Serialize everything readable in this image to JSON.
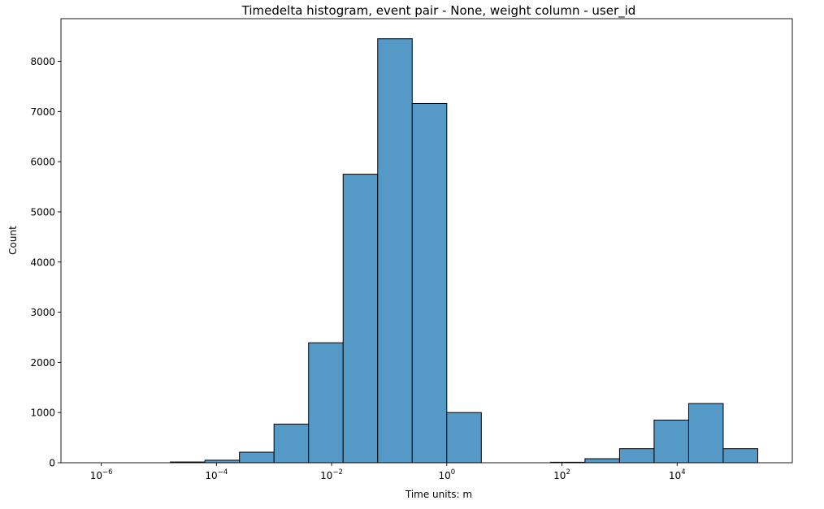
{
  "chart_data": {
    "type": "bar",
    "title": "Timedelta histogram, event pair - None, weight column - user_id",
    "xlabel": "Time units: m",
    "ylabel": "Count",
    "xscale": "log",
    "xlim_log10": [
      -6.7,
      6.0
    ],
    "ylim": [
      0,
      8850
    ],
    "grid": false,
    "legend": "none",
    "bar_color": "#5599c7",
    "edge_color": "#000000",
    "yticks": [
      0,
      1000,
      2000,
      3000,
      4000,
      5000,
      6000,
      7000,
      8000
    ],
    "xticks": [
      {
        "base": "10",
        "exp": "−6",
        "log": -6
      },
      {
        "base": "10",
        "exp": "−4",
        "log": -4
      },
      {
        "base": "10",
        "exp": "−2",
        "log": -2
      },
      {
        "base": "10",
        "exp": "0",
        "log": 0
      },
      {
        "base": "10",
        "exp": "2",
        "log": 2
      },
      {
        "base": "10",
        "exp": "4",
        "log": 4
      }
    ],
    "bin_width_log10": 0.6,
    "bins": [
      {
        "log_start": -6.6,
        "count": 0
      },
      {
        "log_start": -6.0,
        "count": 0
      },
      {
        "log_start": -5.4,
        "count": 0
      },
      {
        "log_start": -4.8,
        "count": 15
      },
      {
        "log_start": -4.2,
        "count": 50
      },
      {
        "log_start": -3.6,
        "count": 210
      },
      {
        "log_start": -3.0,
        "count": 770
      },
      {
        "log_start": -2.4,
        "count": 2390
      },
      {
        "log_start": -1.8,
        "count": 5750
      },
      {
        "log_start": -1.2,
        "count": 8450
      },
      {
        "log_start": -0.6,
        "count": 7160
      },
      {
        "log_start": 0.0,
        "count": 1000
      },
      {
        "log_start": 0.6,
        "count": 0
      },
      {
        "log_start": 1.2,
        "count": 0
      },
      {
        "log_start": 1.8,
        "count": 10
      },
      {
        "log_start": 2.4,
        "count": 80
      },
      {
        "log_start": 3.0,
        "count": 280
      },
      {
        "log_start": 3.6,
        "count": 850
      },
      {
        "log_start": 4.2,
        "count": 1180
      },
      {
        "log_start": 4.8,
        "count": 280
      }
    ]
  }
}
